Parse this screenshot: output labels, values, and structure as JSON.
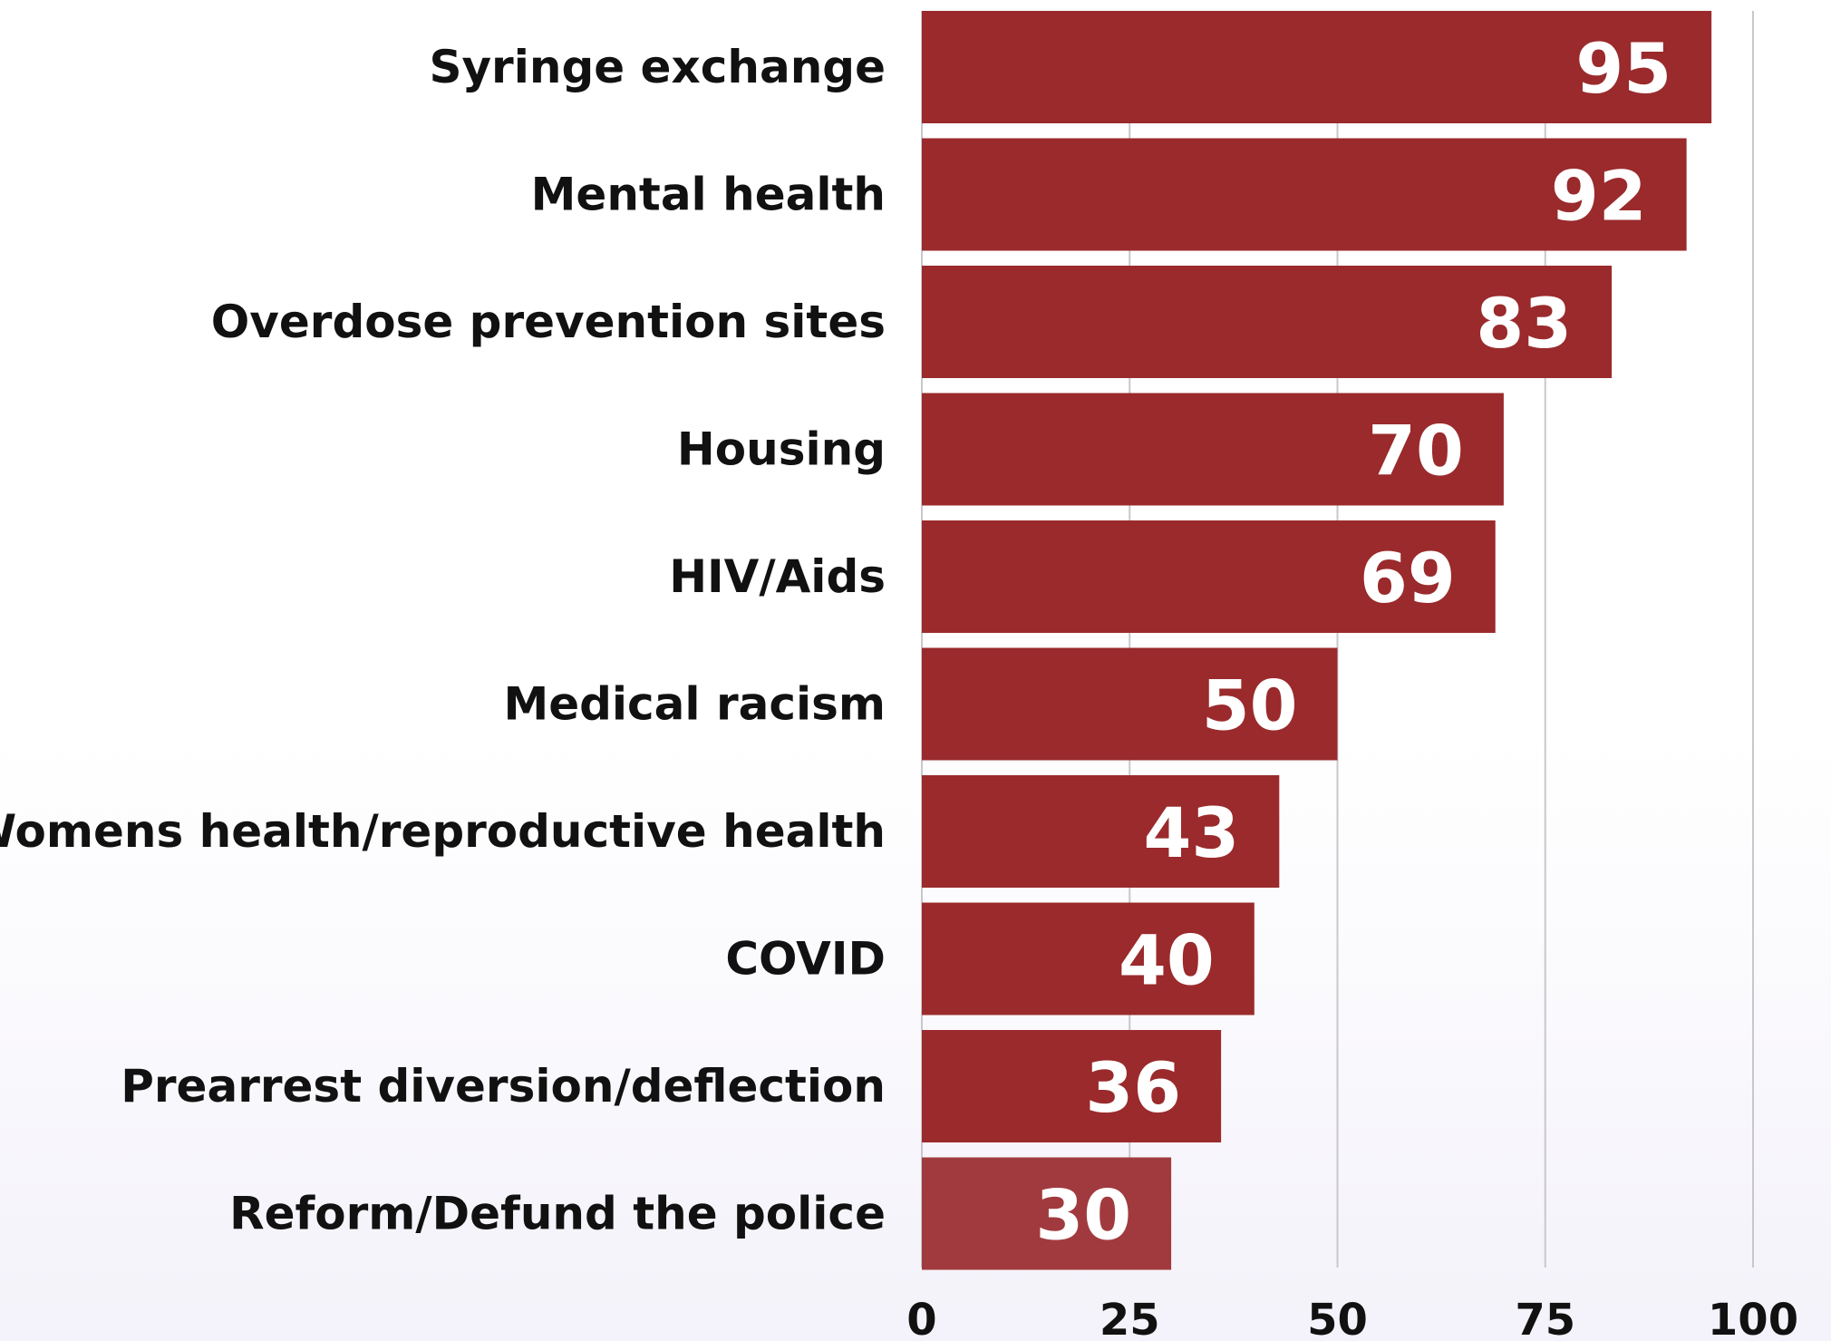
{
  "chart_data": {
    "type": "bar",
    "orientation": "horizontal",
    "categories": [
      "Syringe exchange",
      "Mental health",
      "Overdose prevention sites",
      "Housing",
      "HIV/Aids",
      "Medical racism",
      "Womens health/reproductive health",
      "COVID",
      "Prearrest diversion/deflection",
      "Reform/Defund the police"
    ],
    "values": [
      95,
      92,
      83,
      70,
      69,
      50,
      43,
      40,
      36,
      30
    ],
    "x_ticks": [
      "0",
      "25",
      "50",
      "75",
      "100"
    ],
    "xlim": [
      0,
      100
    ],
    "grid": true,
    "bar_color": "#9a2a2c",
    "last_bar_color": "#a13a3e",
    "value_label_color": "#ffffff",
    "title": "",
    "xlabel": "",
    "ylabel": ""
  }
}
